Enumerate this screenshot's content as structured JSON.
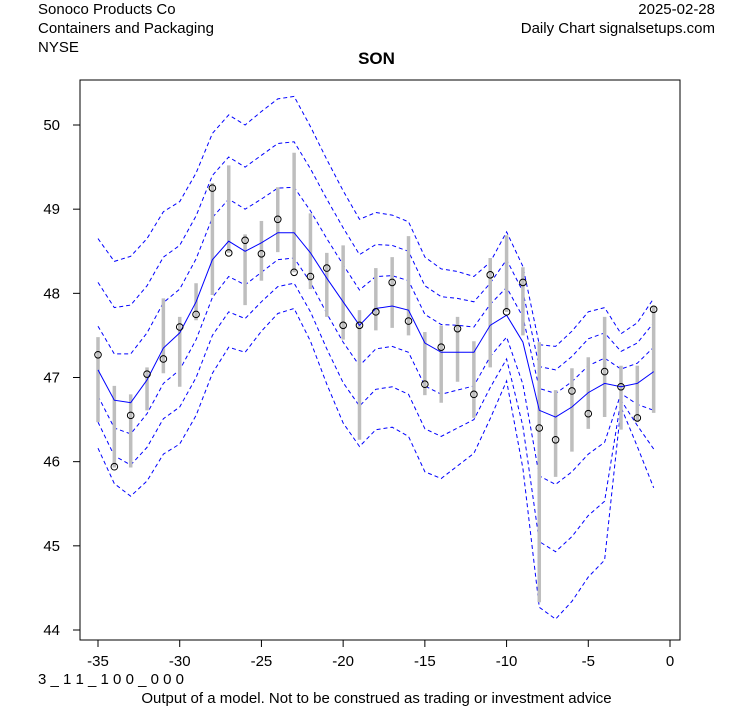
{
  "header": {
    "company": "Sonoco Products Co",
    "sector": "Containers and Packaging",
    "exchange": "NYSE",
    "date": "2025-02-28",
    "source": "Daily Chart signalsetups.com"
  },
  "footer": {
    "code": "3 _ 1 1 _ 1 0 0 _ 0 0 0",
    "disclaimer": "Output of a model. Not to be construed as trading or investment advice"
  },
  "colors": {
    "band": "#0000ff",
    "mid": "#0000ff",
    "bar": "#bebebe",
    "point": "#000000"
  },
  "chart_data": {
    "type": "line",
    "title": "SON",
    "xlabel": "",
    "ylabel": "",
    "xlim": [
      -36.2,
      0.5
    ],
    "ylim": [
      44,
      50.6
    ],
    "xticks": [
      -35,
      -30,
      -25,
      -20,
      -15,
      -10,
      -5,
      0
    ],
    "yticks": [
      44,
      45,
      46,
      47,
      48,
      49,
      50
    ],
    "x": [
      -35,
      -34,
      -33,
      -32,
      -31,
      -30,
      -29,
      -28,
      -27,
      -26,
      -25,
      -24,
      -23,
      -22,
      -21,
      -20,
      -19,
      -18,
      -17,
      -16,
      -15,
      -14,
      -13,
      -12,
      -11,
      -10,
      -9,
      -8,
      -7,
      -6,
      -5,
      -4,
      -3,
      -2,
      -1
    ],
    "close": [
      47.27,
      45.94,
      46.55,
      47.04,
      47.22,
      47.6,
      47.75,
      49.25,
      48.48,
      48.63,
      48.47,
      48.88,
      48.25,
      48.2,
      48.3,
      47.62,
      47.62,
      47.78,
      48.13,
      47.67,
      46.92,
      47.36,
      47.58,
      46.8,
      48.22,
      47.78,
      48.13,
      46.4,
      46.26,
      46.84,
      46.57,
      47.07,
      46.89,
      46.52,
      47.81
    ],
    "high": [
      47.48,
      46.9,
      46.8,
      47.12,
      47.94,
      47.72,
      48.12,
      49.31,
      49.52,
      48.7,
      48.86,
      49.26,
      49.67,
      48.95,
      48.48,
      48.57,
      47.8,
      48.3,
      48.43,
      48.68,
      47.54,
      47.62,
      47.72,
      47.43,
      48.42,
      48.69,
      48.31,
      47.42,
      46.85,
      47.11,
      47.24,
      47.72,
      47.14,
      47.14,
      47.85
    ],
    "low": [
      46.47,
      45.93,
      45.93,
      46.61,
      47.05,
      46.89,
      47.68,
      47.98,
      48.48,
      47.86,
      48.15,
      48.49,
      48.25,
      48.05,
      47.72,
      47.45,
      46.26,
      47.56,
      47.59,
      47.5,
      46.79,
      46.7,
      46.95,
      46.52,
      47.12,
      47.78,
      47.5,
      44.33,
      45.82,
      46.12,
      46.39,
      46.53,
      46.38,
      46.47,
      46.58
    ],
    "mid": [
      47.09,
      46.73,
      46.7,
      46.97,
      47.35,
      47.53,
      47.9,
      48.4,
      48.62,
      48.5,
      48.6,
      48.72,
      48.72,
      48.48,
      48.18,
      47.9,
      47.62,
      47.82,
      47.85,
      47.8,
      47.41,
      47.3,
      47.3,
      47.3,
      47.62,
      47.74,
      47.42,
      46.61,
      46.53,
      46.65,
      46.82,
      46.93,
      46.89,
      46.93,
      47.07
    ],
    "band_step_up": [
      0.52,
      0.55,
      0.58,
      0.56,
      0.54,
      0.52,
      0.51,
      0.5,
      0.5,
      0.5,
      0.52,
      0.53,
      0.54,
      0.5,
      0.47,
      0.44,
      0.42,
      0.38,
      0.36,
      0.35,
      0.34,
      0.33,
      0.32,
      0.3,
      0.25,
      0.33,
      0.3,
      0.26,
      0.28,
      0.3,
      0.32,
      0.3,
      0.21,
      0.24,
      0.29
    ],
    "band_step_down": [
      0.31,
      0.33,
      0.37,
      0.4,
      0.42,
      0.44,
      0.45,
      0.45,
      0.42,
      0.4,
      0.35,
      0.32,
      0.3,
      0.35,
      0.42,
      0.48,
      0.48,
      0.48,
      0.48,
      0.5,
      0.51,
      0.5,
      0.45,
      0.4,
      0.37,
      0.26,
      0.5,
      0.78,
      0.8,
      0.77,
      0.73,
      0.7,
      0.08,
      0.25,
      0.46
    ],
    "band_levels": 3
  }
}
